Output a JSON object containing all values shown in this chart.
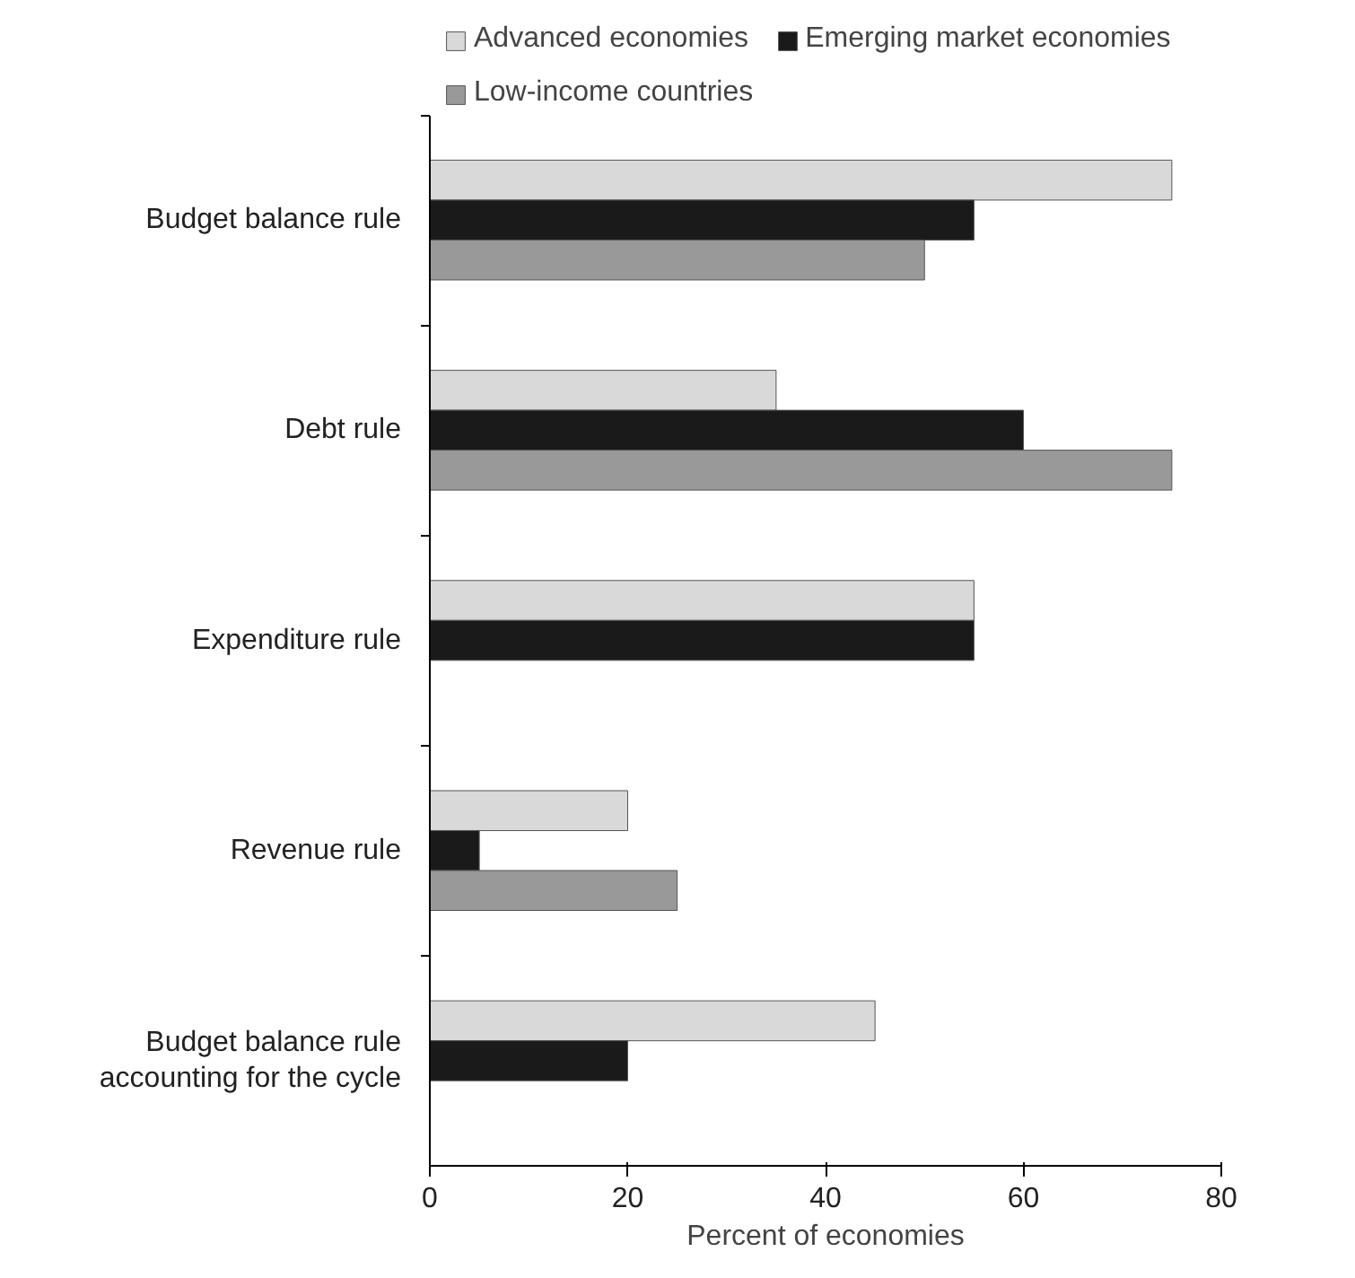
{
  "chart_data": {
    "type": "bar",
    "orientation": "horizontal",
    "xlabel": "Percent of economies",
    "categories": [
      "Budget balance rule",
      "Debt rule",
      "Expenditure rule",
      "Revenue rule",
      "Budget balance rule accounting for the cycle"
    ],
    "series": [
      {
        "name": "Advanced economies",
        "color": "#d9d9d9",
        "values": [
          75,
          35,
          55,
          20,
          45
        ]
      },
      {
        "name": "Emerging market economies",
        "color": "#1a1a1a",
        "values": [
          55,
          60,
          55,
          5,
          20
        ]
      },
      {
        "name": "Low-income countries",
        "color": "#999999",
        "values": [
          50,
          75,
          null,
          25,
          null
        ]
      }
    ],
    "xlim": [
      0,
      80
    ],
    "xticks": [
      0,
      20,
      40,
      60,
      80
    ],
    "grid": false,
    "legend": "top"
  }
}
